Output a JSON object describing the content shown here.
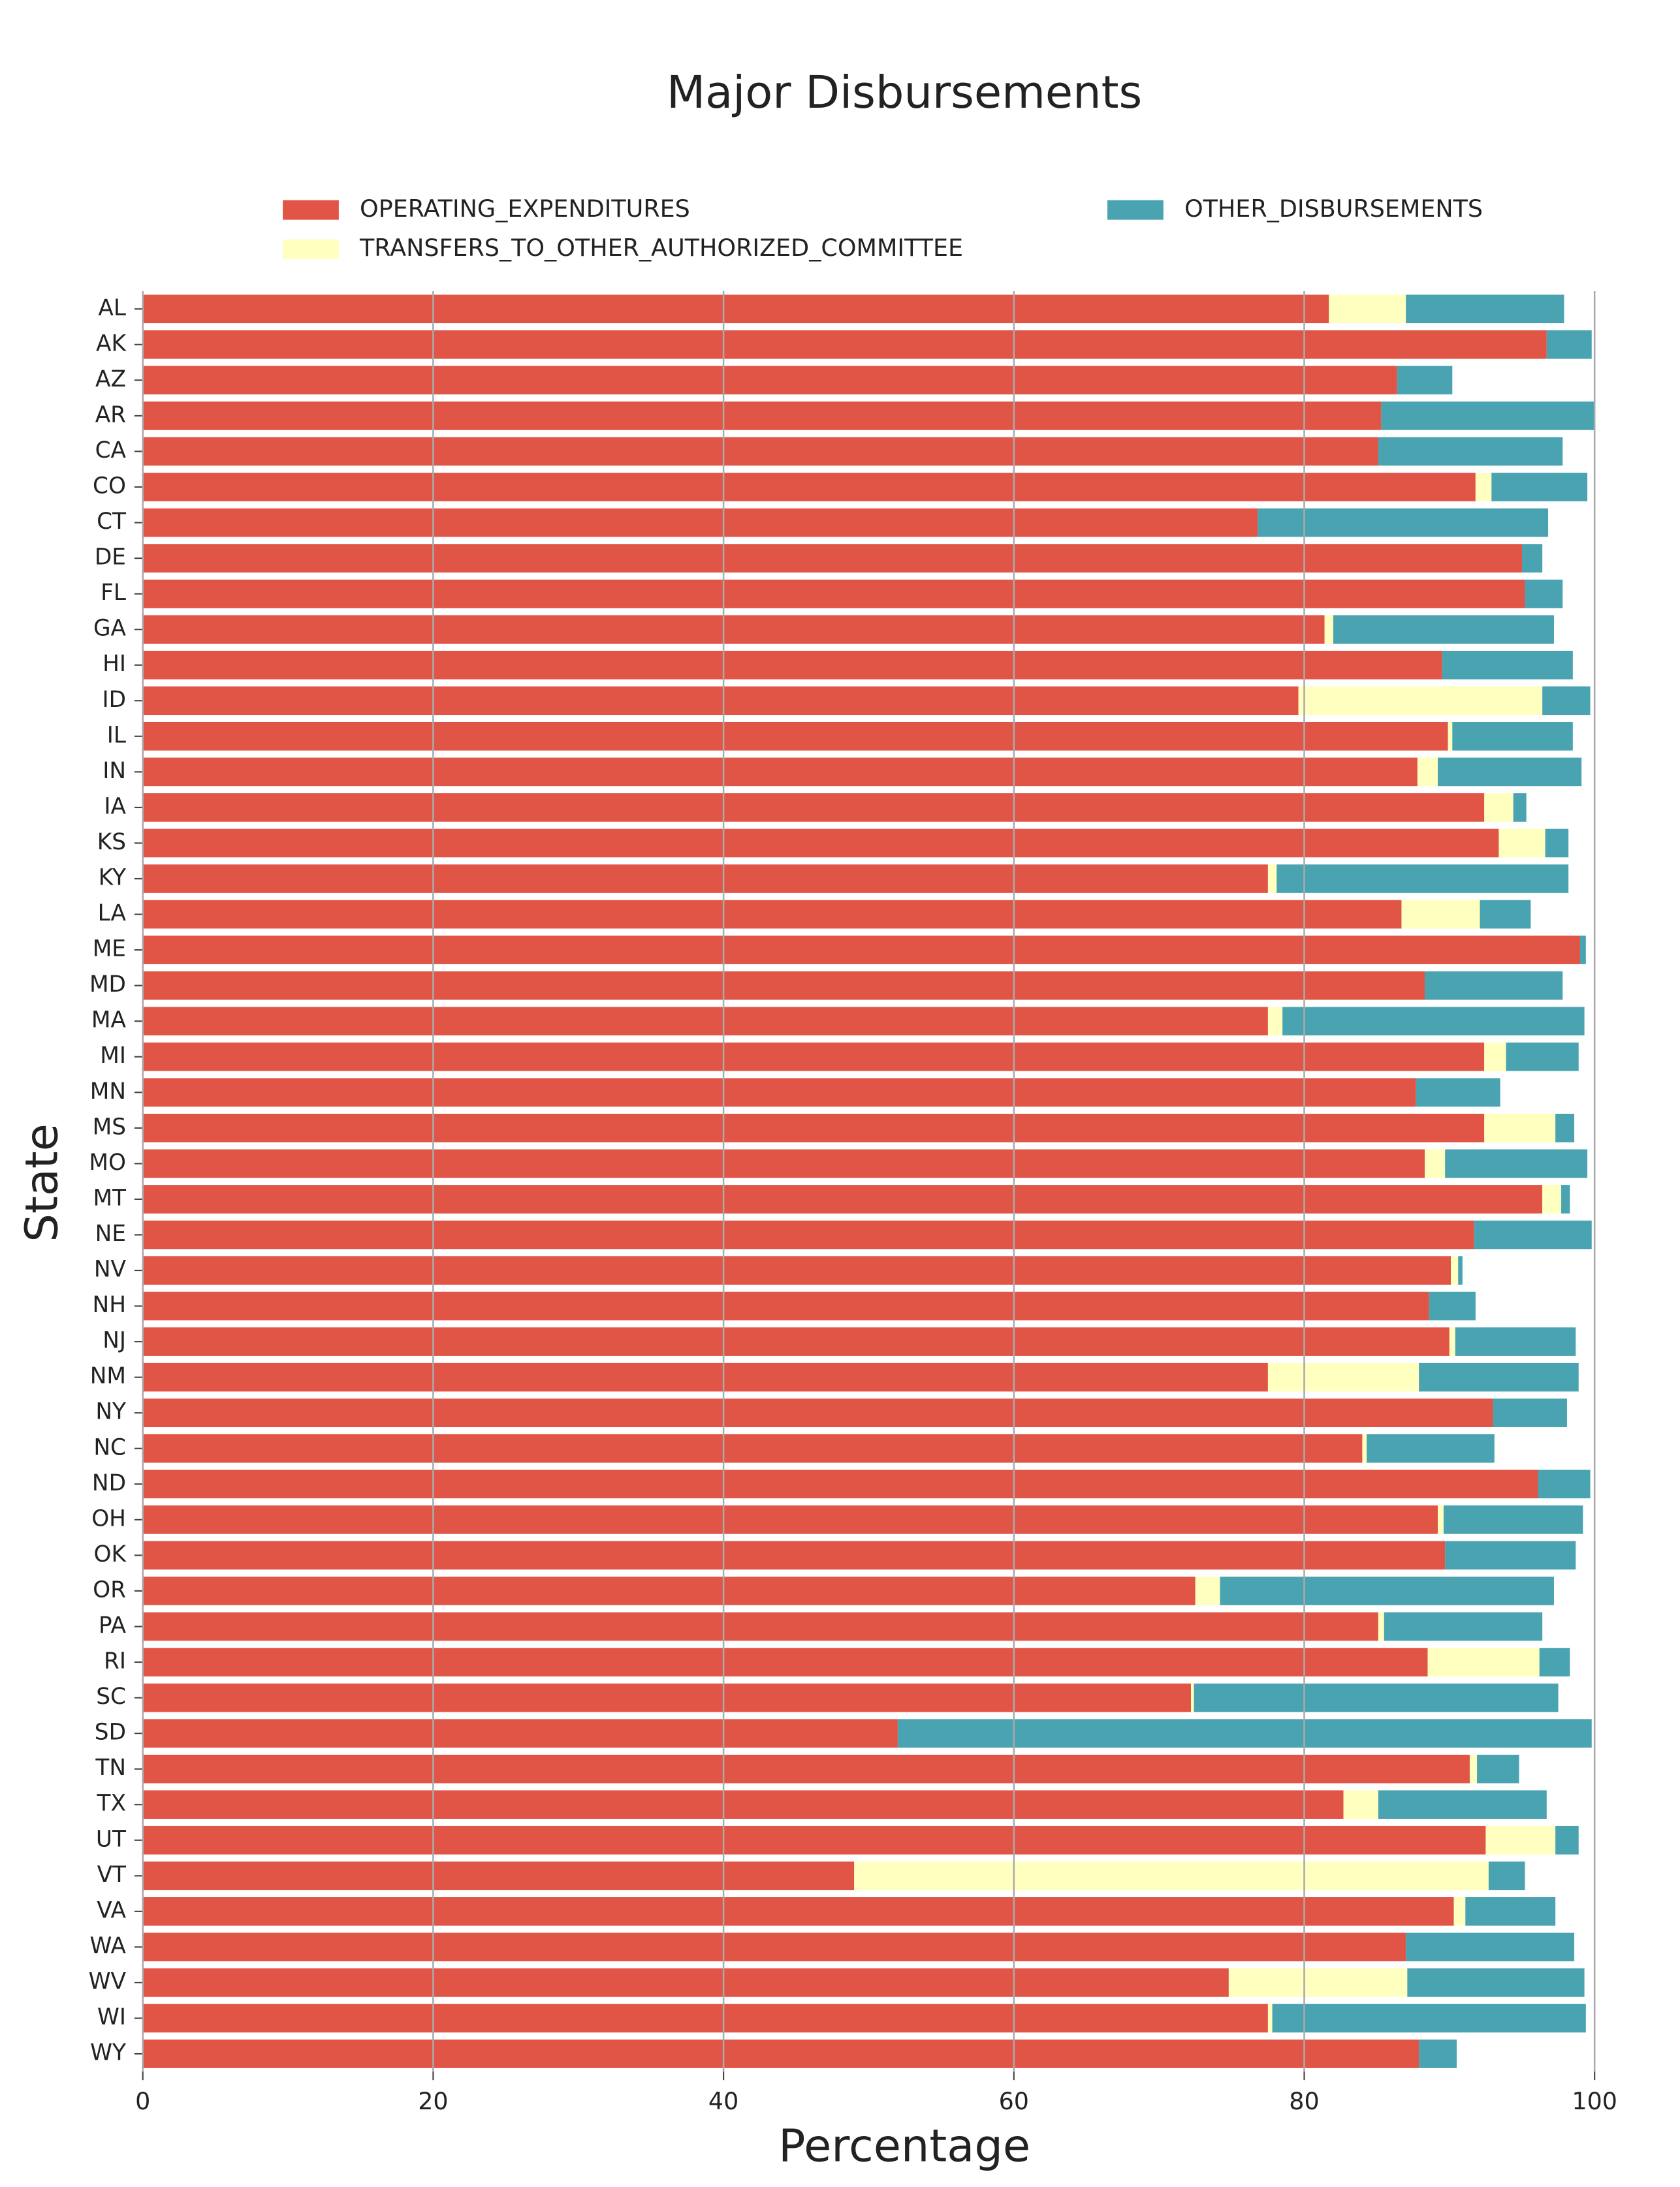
{
  "chart_data": {
    "type": "stacked_barh",
    "title": "Major Disbursements",
    "xlabel": "Percentage",
    "ylabel": "State",
    "categories": [
      "AL",
      "AK",
      "AZ",
      "AR",
      "CA",
      "CO",
      "CT",
      "DE",
      "FL",
      "GA",
      "HI",
      "ID",
      "IL",
      "IN",
      "IA",
      "KS",
      "KY",
      "LA",
      "ME",
      "MD",
      "MA",
      "MI",
      "MN",
      "MS",
      "MO",
      "MT",
      "NE",
      "NV",
      "NH",
      "NJ",
      "NM",
      "NY",
      "NC",
      "ND",
      "OH",
      "OK",
      "OR",
      "PA",
      "RI",
      "SC",
      "SD",
      "TN",
      "TX",
      "UT",
      "VT",
      "VA",
      "WA",
      "WV",
      "WI",
      "WY"
    ],
    "series": [
      {
        "name": "OPERATING_EXPENDITURES",
        "color": "#e15546",
        "values": [
          81.7,
          96.7,
          86.4,
          85.3,
          85.1,
          91.8,
          76.8,
          95.0,
          95.2,
          81.4,
          89.5,
          79.6,
          89.9,
          87.8,
          92.4,
          93.4,
          77.5,
          86.7,
          99.0,
          88.3,
          77.5,
          92.4,
          87.7,
          92.4,
          88.3,
          96.4,
          91.7,
          90.1,
          88.6,
          90.0,
          77.5,
          93.0,
          84.0,
          96.1,
          89.2,
          89.7,
          72.5,
          85.1,
          88.5,
          72.2,
          52.0,
          91.4,
          82.7,
          92.5,
          49.0,
          90.3,
          87.0,
          74.8,
          77.5,
          87.9
        ]
      },
      {
        "name": "TRANSFERS_TO_OTHER_AUTHORIZED_COMMITTEE",
        "color": "#ffffbf",
        "values": [
          5.3,
          0,
          0,
          0,
          0,
          1.1,
          0,
          0,
          0,
          0.6,
          0,
          16.8,
          0.3,
          1.4,
          2.0,
          3.2,
          0.6,
          5.4,
          0,
          0,
          1.0,
          1.5,
          0,
          4.9,
          1.4,
          1.3,
          0,
          0.5,
          0,
          0.4,
          10.4,
          0,
          0.3,
          0,
          0.4,
          0,
          1.7,
          0.4,
          7.7,
          0.2,
          0,
          0.5,
          2.4,
          4.8,
          43.7,
          0.8,
          0,
          12.3,
          0.3,
          0
        ]
      },
      {
        "name": "OTHER_DISBURSEMENTS",
        "color": "#4aa3b0",
        "values": [
          10.9,
          3.1,
          3.8,
          14.7,
          12.7,
          6.6,
          20.0,
          1.4,
          2.6,
          15.2,
          9.0,
          3.3,
          8.3,
          9.9,
          0.9,
          1.6,
          20.1,
          3.5,
          0.4,
          9.5,
          20.8,
          5.0,
          5.8,
          1.3,
          9.8,
          0.6,
          8.1,
          0.3,
          3.2,
          8.3,
          11.0,
          5.1,
          8.8,
          3.6,
          9.6,
          9.0,
          23.0,
          10.9,
          2.1,
          25.1,
          47.8,
          2.9,
          11.6,
          1.6,
          2.5,
          6.2,
          11.6,
          12.2,
          21.6,
          2.6
        ]
      }
    ],
    "xlim": [
      0,
      100
    ],
    "xticks": [
      0,
      20,
      40,
      60,
      80,
      100
    ],
    "grid": true,
    "grid_color": "#aaaaaa",
    "legend": "upper center"
  }
}
